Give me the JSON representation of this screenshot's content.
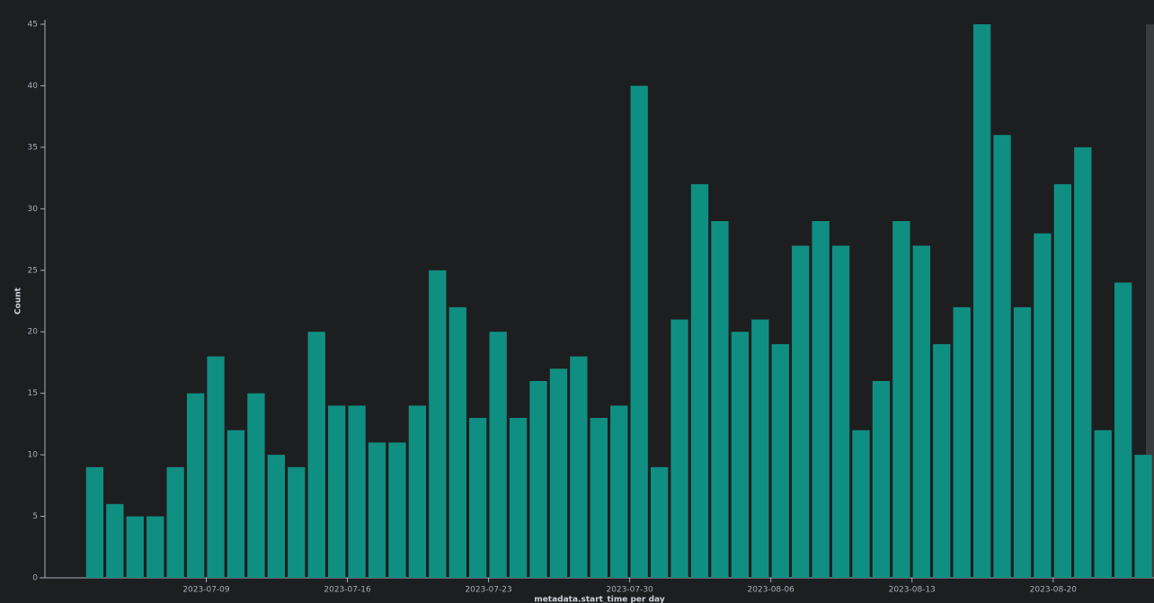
{
  "chart_data": {
    "type": "bar",
    "x_label": "metadata.start_time per day",
    "y_label": "Count",
    "x": [
      "2023-07-03",
      "2023-07-04",
      "2023-07-05",
      "2023-07-06",
      "2023-07-07",
      "2023-07-08",
      "2023-07-09",
      "2023-07-10",
      "2023-07-11",
      "2023-07-12",
      "2023-07-13",
      "2023-07-14",
      "2023-07-15",
      "2023-07-16",
      "2023-07-17",
      "2023-07-18",
      "2023-07-19",
      "2023-07-20",
      "2023-07-21",
      "2023-07-22",
      "2023-07-23",
      "2023-07-24",
      "2023-07-25",
      "2023-07-26",
      "2023-07-27",
      "2023-07-28",
      "2023-07-29",
      "2023-07-30",
      "2023-07-31",
      "2023-08-01",
      "2023-08-02",
      "2023-08-03",
      "2023-08-04",
      "2023-08-05",
      "2023-08-06",
      "2023-08-07",
      "2023-08-08",
      "2023-08-09",
      "2023-08-10",
      "2023-08-11",
      "2023-08-12",
      "2023-08-13",
      "2023-08-14",
      "2023-08-15",
      "2023-08-16",
      "2023-08-17",
      "2023-08-18",
      "2023-08-19",
      "2023-08-20",
      "2023-08-21",
      "2023-08-22",
      "2023-08-23",
      "2023-08-24"
    ],
    "values": [
      9,
      6,
      5,
      5,
      9,
      15,
      18,
      12,
      15,
      10,
      9,
      20,
      14,
      14,
      11,
      11,
      14,
      25,
      22,
      13,
      20,
      13,
      16,
      17,
      18,
      13,
      14,
      40,
      9,
      21,
      32,
      29,
      20,
      21,
      19,
      27,
      29,
      27,
      12,
      16,
      29,
      27,
      19,
      22,
      45,
      36,
      22,
      28,
      32,
      35,
      12,
      24,
      10
    ],
    "color": "#0f8f82",
    "xlim": [
      "2023-07-01",
      "2023-08-25"
    ],
    "xticks": [
      "2023-07-09",
      "2023-07-16",
      "2023-07-23",
      "2023-07-30",
      "2023-08-06",
      "2023-08-13",
      "2023-08-20"
    ],
    "ylim": [
      0,
      45
    ],
    "yticks": [
      0,
      5,
      10,
      15,
      20,
      25,
      30,
      35,
      40,
      45
    ]
  }
}
